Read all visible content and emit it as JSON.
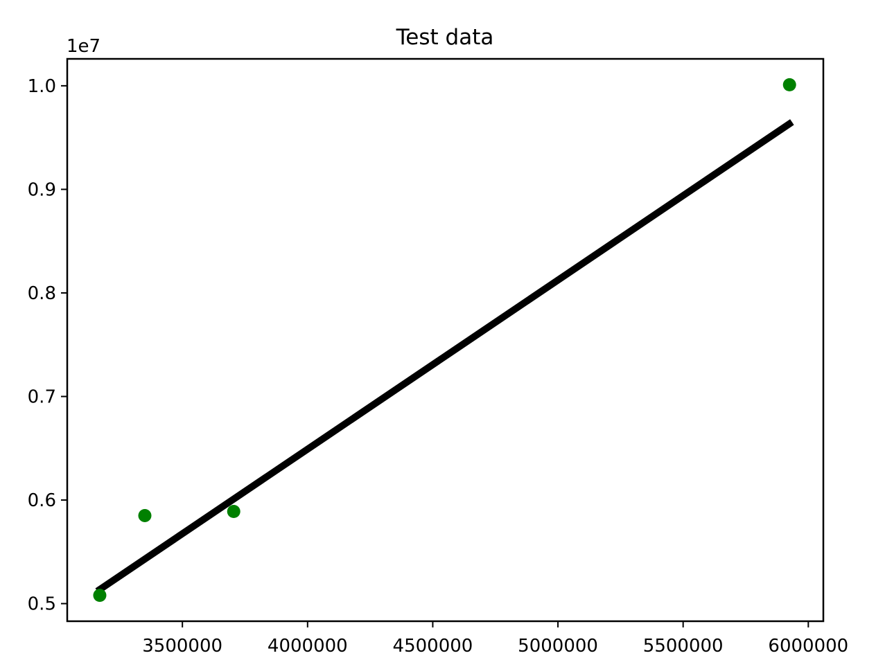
{
  "chart_data": {
    "type": "scatter",
    "title": "Test data",
    "xlabel": "",
    "ylabel": "",
    "y_offset_label": "1e7",
    "xlim": [
      3040000,
      6060000
    ],
    "ylim": [
      4830000,
      10260000
    ],
    "x_ticks": [
      {
        "value": 3500000,
        "label": "3500000"
      },
      {
        "value": 4000000,
        "label": "4000000"
      },
      {
        "value": 4500000,
        "label": "4500000"
      },
      {
        "value": 5000000,
        "label": "5000000"
      },
      {
        "value": 5500000,
        "label": "5500000"
      },
      {
        "value": 6000000,
        "label": "6000000"
      }
    ],
    "y_ticks": [
      {
        "value": 5000000,
        "label": "0.5"
      },
      {
        "value": 6000000,
        "label": "0.6"
      },
      {
        "value": 7000000,
        "label": "0.7"
      },
      {
        "value": 8000000,
        "label": "0.8"
      },
      {
        "value": 9000000,
        "label": "0.9"
      },
      {
        "value": 10000000,
        "label": "1.0"
      }
    ],
    "series": [
      {
        "kind": "points",
        "color": "#008000",
        "points": [
          {
            "x": 3170000,
            "y": 5080000
          },
          {
            "x": 3350000,
            "y": 5850000
          },
          {
            "x": 3705000,
            "y": 5890000
          },
          {
            "x": 5925000,
            "y": 10010000
          }
        ]
      },
      {
        "kind": "fit-line",
        "color": "#000000",
        "points": [
          {
            "x": 3160000,
            "y": 5120000
          },
          {
            "x": 5935000,
            "y": 9650000
          }
        ]
      }
    ],
    "grid": false,
    "legend": "none"
  }
}
